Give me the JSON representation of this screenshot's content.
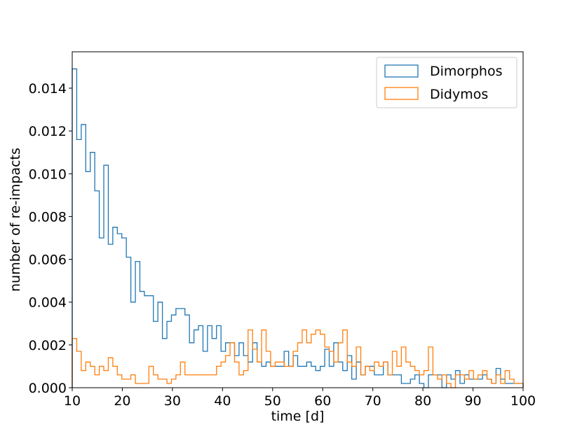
{
  "chart_data": {
    "type": "histogram-step",
    "xlabel": "time [d]",
    "ylabel": "number of re-impacts",
    "xlim": [
      10,
      100
    ],
    "ylim": [
      0,
      0.0157
    ],
    "x_ticks": [
      10,
      20,
      30,
      40,
      50,
      60,
      70,
      80,
      90,
      100
    ],
    "y_ticks": [
      0.0,
      0.002,
      0.004,
      0.006,
      0.008,
      0.01,
      0.012,
      0.014
    ],
    "y_tick_labels": [
      "0.000",
      "0.002",
      "0.004",
      "0.006",
      "0.008",
      "0.010",
      "0.012",
      "0.014"
    ],
    "bin_start": 10,
    "bin_width": 0.9,
    "legend_position": "upper right",
    "series": [
      {
        "name": "Dimorphos",
        "color": "#1f77b4",
        "values": [
          0.0149,
          0.0116,
          0.0123,
          0.0101,
          0.011,
          0.0092,
          0.007,
          0.0104,
          0.0067,
          0.0075,
          0.0072,
          0.007,
          0.0061,
          0.004,
          0.0059,
          0.0045,
          0.0043,
          0.0043,
          0.0031,
          0.004,
          0.0023,
          0.0031,
          0.0034,
          0.0037,
          0.0037,
          0.0034,
          0.0021,
          0.0027,
          0.0029,
          0.0017,
          0.0029,
          0.0023,
          0.0029,
          0.0017,
          0.0021,
          0.0021,
          0.0015,
          0.0021,
          0.0015,
          0.0012,
          0.0021,
          0.0012,
          0.001,
          0.0012,
          0.001,
          0.001,
          0.001,
          0.0017,
          0.001,
          0.0015,
          0.001,
          0.001,
          0.0012,
          0.001,
          0.0008,
          0.001,
          0.0018,
          0.001,
          0.0021,
          0.0012,
          0.0008,
          0.0015,
          0.0004,
          0.0012,
          0.0006,
          0.001,
          0.001,
          0.0006,
          0.0006,
          0.0012,
          0.0006,
          0.0006,
          0.0006,
          0.0002,
          0.0002,
          0.0004,
          0.0006,
          0.0002,
          0.0,
          0.0006,
          0.0006,
          0.0006,
          0.0,
          0.0006,
          0.0004,
          0.0008,
          0.0002,
          0.0006,
          0.0004,
          0.0004,
          0.0004,
          0.0006,
          0.0004,
          0.0002,
          0.0009,
          0.0004,
          0.0002,
          0.0002,
          0.0002,
          0.0002
        ]
      },
      {
        "name": "Didymos",
        "color": "#ff7f0e",
        "values": [
          0.0023,
          0.0017,
          0.0008,
          0.0012,
          0.001,
          0.0006,
          0.001,
          0.0008,
          0.0014,
          0.001,
          0.0006,
          0.0004,
          0.0004,
          0.0006,
          0.0002,
          0.0002,
          0.0002,
          0.001,
          0.0006,
          0.0004,
          0.0004,
          0.0002,
          0.0004,
          0.0006,
          0.0012,
          0.0006,
          0.0006,
          0.0006,
          0.0006,
          0.0006,
          0.0006,
          0.0006,
          0.001,
          0.0012,
          0.0015,
          0.0021,
          0.0012,
          0.0006,
          0.0008,
          0.0027,
          0.0018,
          0.0012,
          0.0027,
          0.0017,
          0.001,
          0.0012,
          0.0012,
          0.001,
          0.001,
          0.0017,
          0.0021,
          0.0027,
          0.0021,
          0.0025,
          0.0027,
          0.0025,
          0.0019,
          0.0017,
          0.0012,
          0.0021,
          0.0027,
          0.0012,
          0.001,
          0.0019,
          0.0006,
          0.001,
          0.0008,
          0.0012,
          0.001,
          0.0012,
          0.0006,
          0.0017,
          0.001,
          0.0019,
          0.0012,
          0.001,
          0.0008,
          0.0006,
          0.0008,
          0.0019,
          0.0006,
          0.0004,
          0.0006,
          0.0002,
          0.0,
          0.0006,
          0.0006,
          0.0004,
          0.0008,
          0.0004,
          0.0006,
          0.0008,
          0.0004,
          0.0002,
          0.0006,
          0.0002,
          0.0008,
          0.0004,
          0.0002,
          0.0002
        ]
      }
    ]
  }
}
